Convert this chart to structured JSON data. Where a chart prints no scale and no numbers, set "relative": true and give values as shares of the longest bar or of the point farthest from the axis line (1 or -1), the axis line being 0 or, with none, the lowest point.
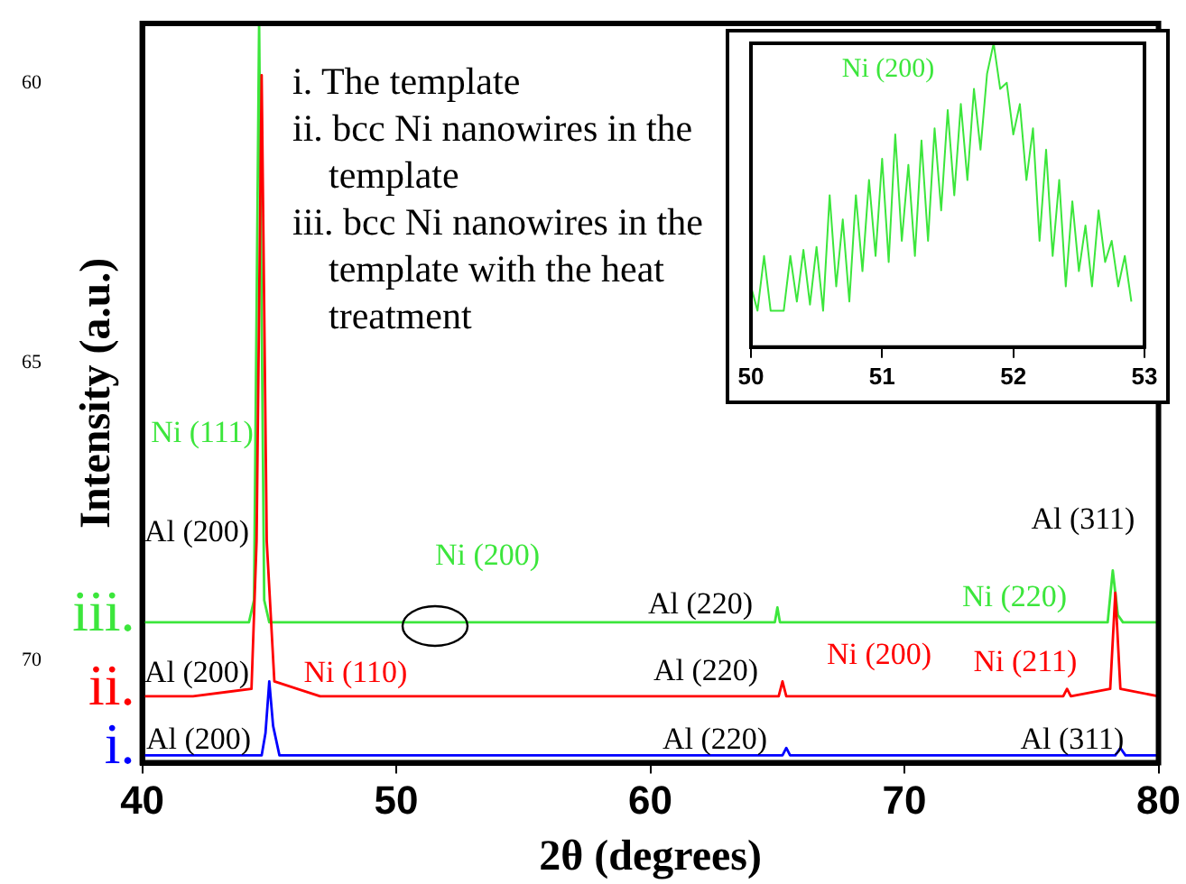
{
  "chart_data": [
    {
      "type": "line",
      "xlabel": "2θ (degrees)",
      "ylabel": "Intensity (a.u.)",
      "relative": true,
      "xlim": [
        40,
        80
      ],
      "xticks": [
        40,
        50,
        60,
        70,
        80
      ],
      "grid": false,
      "marker": "none",
      "line_style": "solid",
      "series": [
        {
          "name": "i.",
          "color": "#0000ff",
          "x": [
            40,
            44.7,
            44.85,
            45.0,
            45.15,
            45.4,
            50,
            55,
            60,
            65.2,
            65.35,
            65.5,
            70,
            78.3,
            78.5,
            78.7,
            80
          ],
          "values": [
            0.01,
            0.01,
            0.04,
            0.11,
            0.05,
            0.01,
            0.01,
            0.01,
            0.01,
            0.01,
            0.02,
            0.01,
            0.01,
            0.01,
            0.02,
            0.01,
            0.01
          ]
        },
        {
          "name": "ii.",
          "color": "#ff0000",
          "x": [
            40,
            42,
            44.3,
            44.5,
            44.7,
            44.9,
            45.2,
            47,
            50,
            53,
            56,
            60,
            63,
            65.05,
            65.2,
            65.35,
            68,
            72,
            76.25,
            76.4,
            76.55,
            78.1,
            78.3,
            78.5,
            80
          ],
          "values": [
            0.09,
            0.09,
            0.1,
            0.3,
            0.93,
            0.3,
            0.11,
            0.09,
            0.09,
            0.09,
            0.09,
            0.09,
            0.09,
            0.09,
            0.11,
            0.09,
            0.09,
            0.09,
            0.09,
            0.1,
            0.09,
            0.1,
            0.23,
            0.1,
            0.09
          ]
        },
        {
          "name": "iii.",
          "color": "#3ce63c",
          "x": [
            40,
            44.2,
            44.4,
            44.6,
            44.8,
            45.0,
            50,
            60,
            64.9,
            65.0,
            65.1,
            78.0,
            78.2,
            78.4,
            78.6,
            80
          ],
          "values": [
            0.19,
            0.19,
            0.22,
            1.0,
            0.22,
            0.19,
            0.19,
            0.19,
            0.19,
            0.21,
            0.19,
            0.19,
            0.26,
            0.2,
            0.19,
            0.19
          ]
        }
      ],
      "annotations": [
        "i. The template",
        "ii. bcc Ni nanowires in the template",
        "iii. bcc Ni nanowires in the template with the heat treatment",
        "60",
        "65",
        "70",
        "Ni (111)",
        "Al (200)",
        "Al (200)",
        "Al (200)",
        "Ni (110)",
        "Ni (200)",
        "Al (220)",
        "Al (220)",
        "Al (220)",
        "Ni (200)",
        "Ni (211)",
        "Al (311)",
        "Ni (220)",
        "Al (311)"
      ]
    },
    {
      "type": "line",
      "relative": true,
      "xlim": [
        50,
        53
      ],
      "xticks": [
        50,
        51,
        52,
        53
      ],
      "grid": false,
      "marker": "none",
      "line_style": "solid",
      "series": [
        {
          "color": "#3ce63c",
          "x": [
            50.0,
            50.05,
            50.1,
            50.15,
            50.2,
            50.25,
            50.3,
            50.35,
            50.4,
            50.45,
            50.5,
            50.55,
            50.6,
            50.65,
            50.7,
            50.75,
            50.8,
            50.85,
            50.9,
            50.95,
            51.0,
            51.05,
            51.1,
            51.15,
            51.2,
            51.25,
            51.3,
            51.35,
            51.4,
            51.45,
            51.5,
            51.55,
            51.6,
            51.65,
            51.7,
            51.75,
            51.8,
            51.85,
            51.9,
            51.95,
            52.0,
            52.05,
            52.1,
            52.15,
            52.2,
            52.25,
            52.3,
            52.35,
            52.4,
            52.45,
            52.5,
            52.55,
            52.6,
            52.65,
            52.7,
            52.75,
            52.8,
            52.85,
            52.9
          ],
          "values": [
            0.2,
            0.12,
            0.3,
            0.12,
            0.12,
            0.12,
            0.3,
            0.15,
            0.32,
            0.14,
            0.33,
            0.12,
            0.5,
            0.2,
            0.42,
            0.15,
            0.5,
            0.25,
            0.55,
            0.3,
            0.62,
            0.28,
            0.7,
            0.35,
            0.6,
            0.3,
            0.68,
            0.35,
            0.72,
            0.45,
            0.78,
            0.5,
            0.8,
            0.55,
            0.85,
            0.65,
            0.9,
            1.0,
            0.85,
            0.87,
            0.7,
            0.8,
            0.55,
            0.72,
            0.35,
            0.65,
            0.3,
            0.55,
            0.2,
            0.48,
            0.25,
            0.4,
            0.2,
            0.45,
            0.28,
            0.35,
            0.2,
            0.3,
            0.15
          ]
        }
      ],
      "annotations": [
        "Ni (200)"
      ]
    }
  ]
}
